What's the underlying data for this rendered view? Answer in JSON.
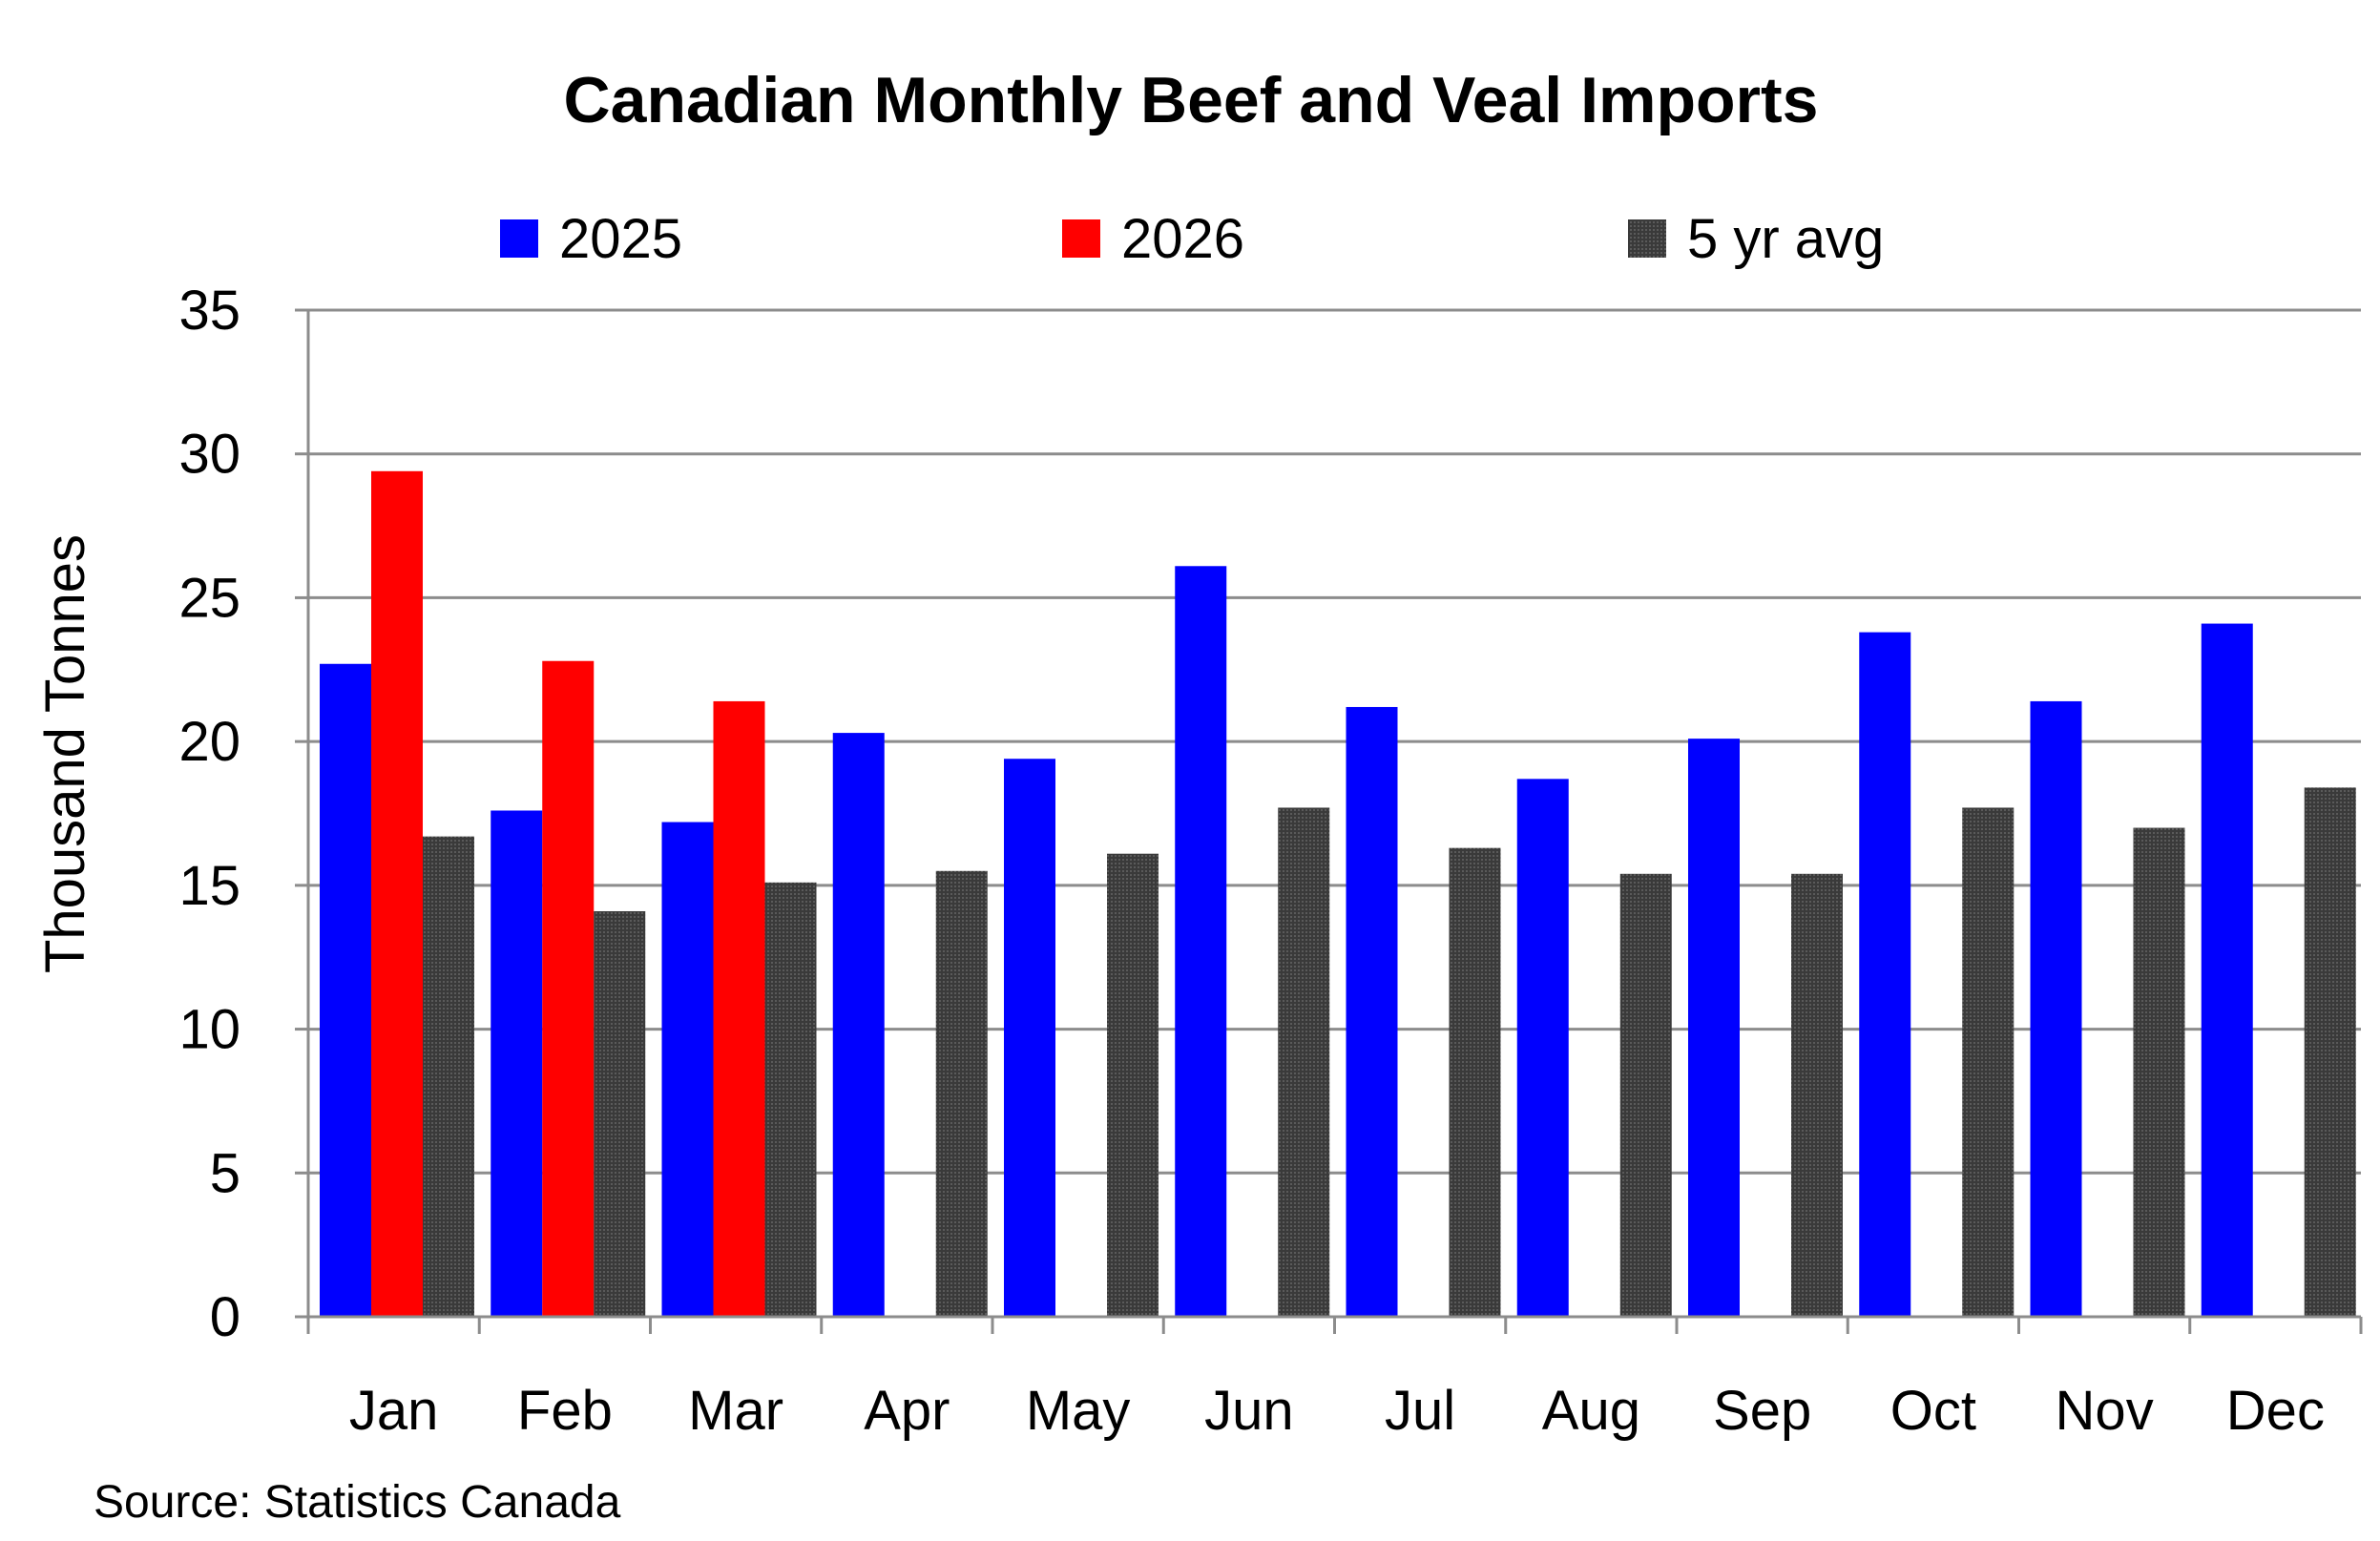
{
  "chart_data": {
    "type": "bar",
    "title": "Canadian Monthly Beef and Veal Imports",
    "ylabel": "Thousand Tonnes",
    "xlabel": "",
    "ylim": [
      0,
      35
    ],
    "yticks": [
      "0",
      "5",
      "10",
      "15",
      "20",
      "25",
      "30",
      "35"
    ],
    "grid": true,
    "legend_position": "top",
    "categories": [
      "Jan",
      "Feb",
      "Mar",
      "Apr",
      "May",
      "Jun",
      "Jul",
      "Aug",
      "Sep",
      "Oct",
      "Nov",
      "Dec"
    ],
    "series": [
      {
        "name": "2025",
        "color": "#0000ff",
        "values": [
          22.7,
          17.6,
          17.2,
          20.3,
          19.4,
          26.1,
          21.2,
          18.7,
          20.1,
          23.8,
          21.4,
          24.1
        ]
      },
      {
        "name": "2026",
        "color": "#ff0000",
        "values": [
          29.4,
          22.8,
          21.4,
          null,
          null,
          null,
          null,
          null,
          null,
          null,
          null,
          null
        ]
      },
      {
        "name": "5 yr avg",
        "color": "#3c3c3c",
        "values": [
          16.7,
          14.1,
          15.1,
          15.5,
          16.1,
          17.7,
          16.3,
          15.4,
          15.4,
          17.7,
          17.0,
          18.4
        ]
      }
    ],
    "source": "Source: Statistics Canada"
  }
}
